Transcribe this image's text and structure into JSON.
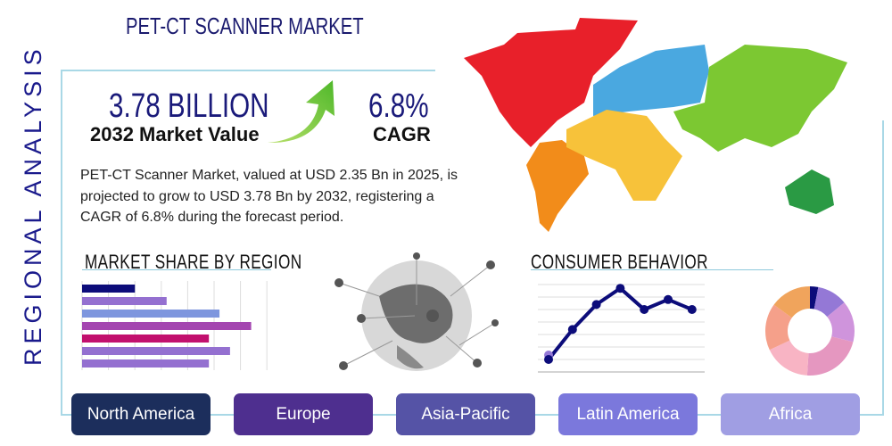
{
  "header": {
    "title": "PET-CT SCANNER MARKET",
    "side_title": "REGIONAL ANALYSIS"
  },
  "highlights": {
    "market_value": "3.78 BILLION",
    "market_value_label": "2032 Market Value",
    "cagr": "6.8%",
    "cagr_label": "CAGR"
  },
  "description": "PET-CT Scanner Market, valued at USD 2.35 Bn in 2025, is projected to grow to USD 3.78 Bn by 2032, registering a CAGR of 6.8% during the forecast period.",
  "sections": {
    "market_share": "MARKET SHARE BY REGION",
    "consumer_behavior": "CONSUMER BEHAVIOR"
  },
  "regions": [
    {
      "label": "North America",
      "color": "#1c2e5c"
    },
    {
      "label": "Europe",
      "color": "#4e2f8f"
    },
    {
      "label": "Asia-Pacific",
      "color": "#5553a6"
    },
    {
      "label": "Latin America",
      "color": "#7b78dc"
    },
    {
      "label": "Africa",
      "color": "#a09ee3"
    }
  ],
  "map_colors": {
    "north_america": "#e8202a",
    "south_america": "#f28c1a",
    "europe": "#4aa8e0",
    "africa": "#f7c23a",
    "asia": "#7cc832",
    "oceania": "#2a9a44"
  },
  "chart_data": [
    {
      "type": "bar",
      "orientation": "horizontal",
      "values": [
        2.0,
        3.2,
        5.2,
        6.4,
        4.8,
        5.6,
        4.8
      ],
      "colors": [
        "#0c0c7a",
        "#9470d0",
        "#7e96de",
        "#a445b0",
        "#c2106e",
        "#9470d0",
        "#9470d0"
      ],
      "xlim": [
        0,
        8
      ],
      "grid": true
    },
    {
      "type": "line",
      "values": [
        1.0,
        3.4,
        5.4,
        6.7,
        5.0,
        5.8,
        5.0
      ],
      "ylim": [
        0,
        7
      ],
      "color": "#0c0c7a",
      "grid": true
    },
    {
      "type": "pie",
      "donut": true,
      "values": [
        3,
        11,
        15,
        22,
        17,
        17,
        15
      ],
      "colors": [
        "#0c0c7a",
        "#9478d6",
        "#cf94dc",
        "#e597c0",
        "#f8b4c4",
        "#f5a08a",
        "#f0a45c"
      ]
    }
  ]
}
